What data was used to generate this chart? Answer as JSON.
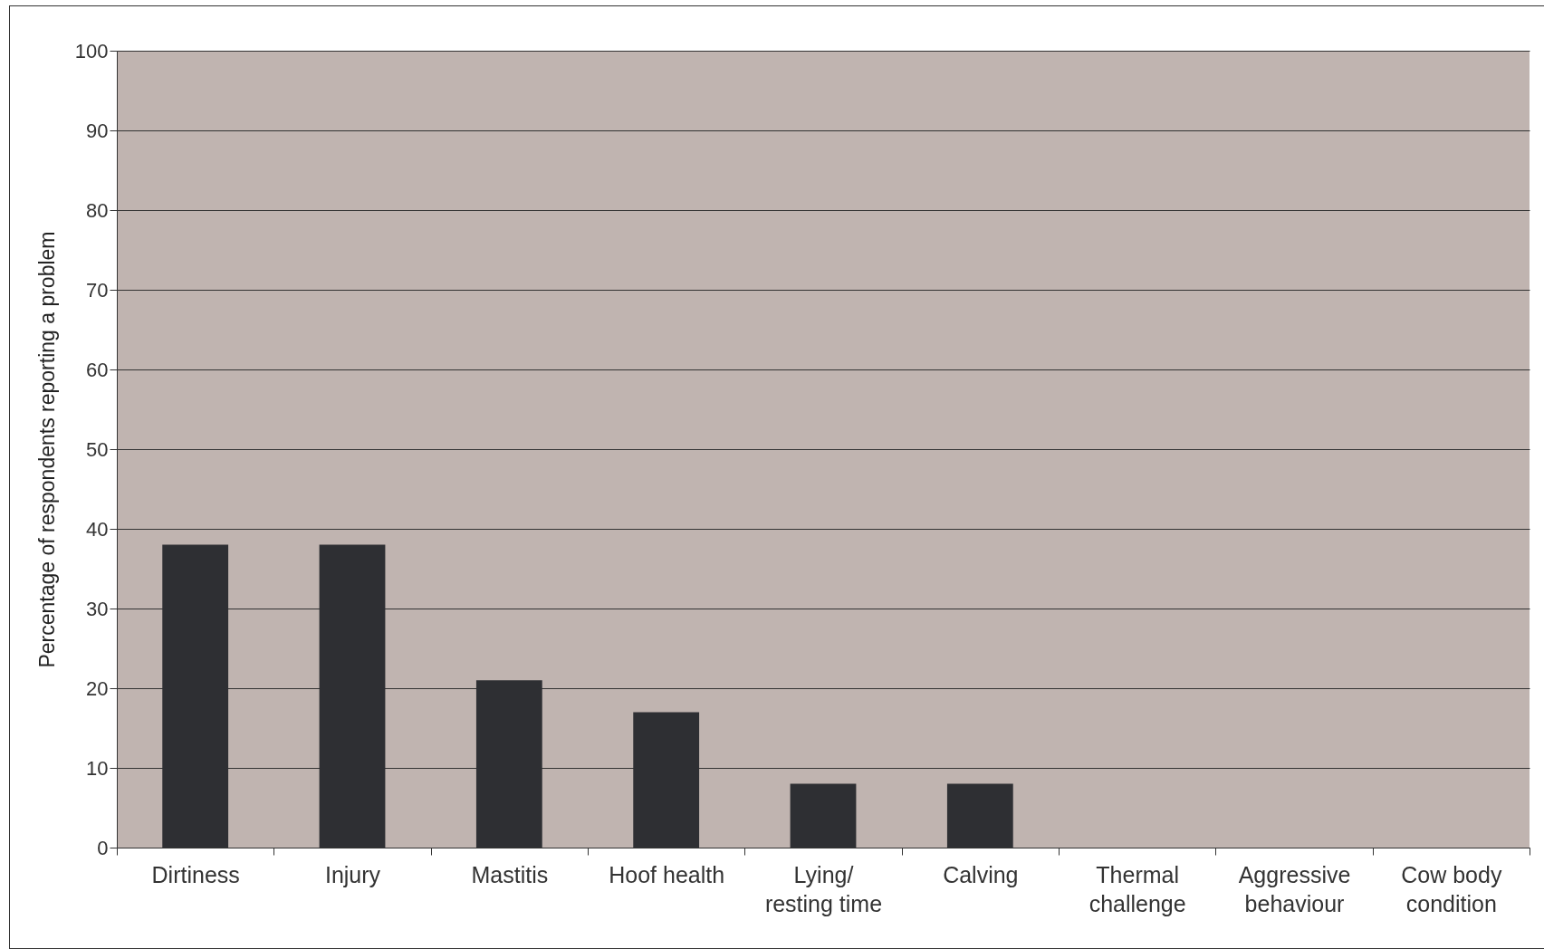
{
  "chart_data": {
    "type": "bar",
    "ylabel": "Percentage of respondents reporting a problem",
    "categories": [
      "Dirtiness",
      "Injury",
      "Mastitis",
      "Hoof health",
      "Lying/ resting time",
      "Calving",
      "Thermal challenge",
      "Aggressive behaviour",
      "Cow body condition"
    ],
    "values": [
      38,
      38,
      21,
      17,
      8,
      8,
      0,
      0,
      0
    ],
    "color": "#2e2f33",
    "ylim": [
      0,
      100
    ],
    "yticks": [
      0,
      10,
      20,
      30,
      40,
      50,
      60,
      70,
      80,
      90,
      100
    ],
    "grid": "y"
  }
}
